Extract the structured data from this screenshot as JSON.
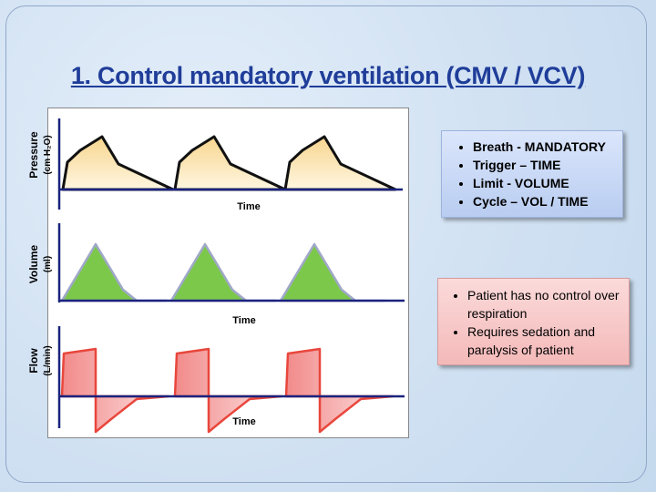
{
  "title": "1. Control mandatory ventilation (CMV / VCV)",
  "panels": [
    {
      "label": "Pressure",
      "unit": "(cm H₂O)",
      "x_label": "Time"
    },
    {
      "label": "Volume",
      "unit": "(ml)",
      "x_label": "Time"
    },
    {
      "label": "Flow",
      "unit": "(L/min)",
      "x_label": "Time"
    }
  ],
  "mode_box": {
    "items": [
      "Breath - MANDATORY",
      "Trigger – TIME",
      "Limit - VOLUME",
      "Cycle – VOL / TIME"
    ]
  },
  "note_box": {
    "items": [
      "Patient has no control over respiration",
      "Requires sedation and paralysis of  patient"
    ]
  }
}
